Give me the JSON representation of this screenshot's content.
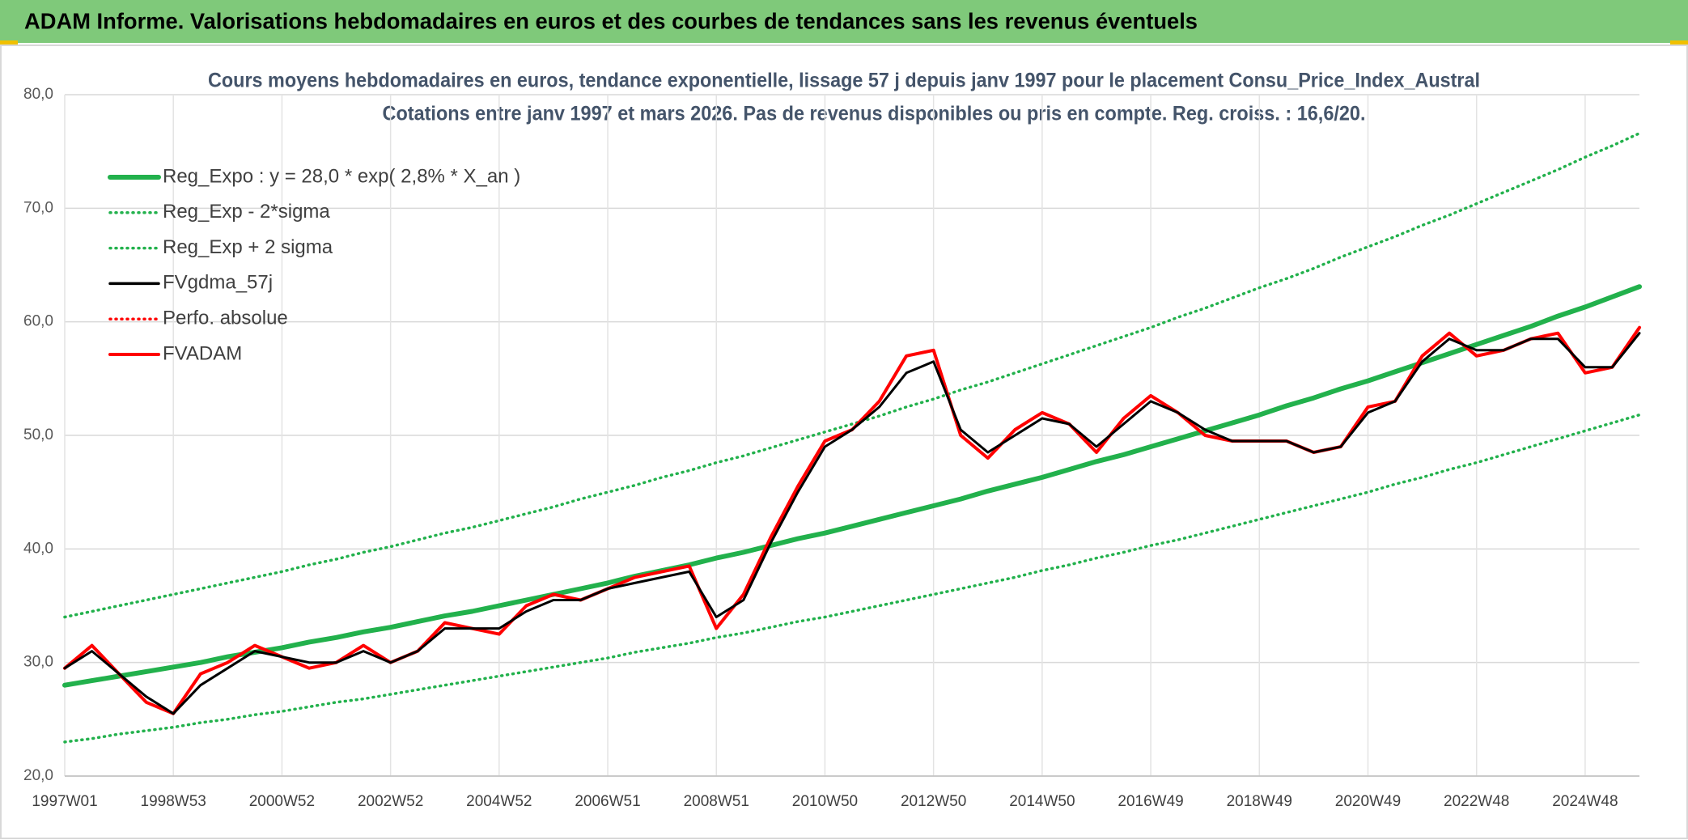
{
  "header": {
    "title": "ADAM Informe. Valorisations hebdomadaires en euros et des courbes de tendances sans les revenus éventuels"
  },
  "chart_data": {
    "type": "line",
    "title": "Cours moyens hebdomadaires en euros, tendance exponentielle, lissage 57 j depuis janv 1997 pour le placement Consu_Price_Index_Austral",
    "subtitle": "Cotations entre janv 1997 et mars 2026. Pas de revenus disponibles ou pris en compte. Reg. croiss. : 16,6/20.",
    "categories": [
      "1997W01",
      null,
      null,
      null,
      "1998W53",
      null,
      null,
      null,
      "2000W52",
      null,
      null,
      null,
      "2002W52",
      null,
      null,
      null,
      "2004W52",
      null,
      null,
      null,
      "2006W51",
      null,
      null,
      null,
      "2008W51",
      null,
      null,
      null,
      "2010W50",
      null,
      null,
      null,
      "2012W50",
      null,
      null,
      null,
      "2014W50",
      null,
      null,
      null,
      "2016W49",
      null,
      null,
      null,
      "2018W49",
      null,
      null,
      null,
      "2020W49",
      null,
      null,
      null,
      "2022W48",
      null,
      null,
      null,
      "2024W48",
      null,
      null
    ],
    "ylim": [
      20,
      80
    ],
    "yticks": [
      {
        "value": 20,
        "label": "20,0"
      },
      {
        "value": 30,
        "label": "30,0"
      },
      {
        "value": 40,
        "label": "40,0"
      },
      {
        "value": 50,
        "label": "50,0"
      },
      {
        "value": 60,
        "label": "60,0"
      },
      {
        "value": 70,
        "label": "70,0"
      },
      {
        "value": 80,
        "label": "80,0"
      }
    ],
    "grid": true,
    "legend": "top-left",
    "series": [
      {
        "name": "Reg_Expo : y = 28,0 * exp( 2,8% *  X_an )",
        "color": "#22b14c",
        "style": "solid",
        "values": [
          28.0,
          28.4,
          28.8,
          29.2,
          29.6,
          30.0,
          30.5,
          30.9,
          31.3,
          31.8,
          32.2,
          32.7,
          33.1,
          33.6,
          34.1,
          34.5,
          35.0,
          35.5,
          36.0,
          36.5,
          37.0,
          37.6,
          38.1,
          38.6,
          39.2,
          39.7,
          40.3,
          40.9,
          41.4,
          42.0,
          42.6,
          43.2,
          43.8,
          44.4,
          45.1,
          45.7,
          46.3,
          47.0,
          47.7,
          48.3,
          49.0,
          49.7,
          50.4,
          51.1,
          51.8,
          52.6,
          53.3,
          54.1,
          54.8,
          55.6,
          56.4,
          57.2,
          58.0,
          58.8,
          59.6,
          60.5,
          61.3,
          62.2,
          63.1
        ]
      },
      {
        "name": "Reg_Exp - 2*sigma",
        "color": "#22b14c",
        "style": "dotted",
        "values": [
          23.0,
          23.3,
          23.7,
          24.0,
          24.3,
          24.7,
          25.0,
          25.4,
          25.7,
          26.1,
          26.5,
          26.8,
          27.2,
          27.6,
          28.0,
          28.4,
          28.8,
          29.2,
          29.6,
          30.0,
          30.4,
          30.9,
          31.3,
          31.7,
          32.2,
          32.6,
          33.1,
          33.6,
          34.0,
          34.5,
          35.0,
          35.5,
          36.0,
          36.5,
          37.0,
          37.5,
          38.1,
          38.6,
          39.2,
          39.7,
          40.3,
          40.8,
          41.4,
          42.0,
          42.6,
          43.2,
          43.8,
          44.4,
          45.0,
          45.7,
          46.3,
          47.0,
          47.6,
          48.3,
          49.0,
          49.7,
          50.4,
          51.1,
          51.8
        ]
      },
      {
        "name": "Reg_Exp + 2 sigma",
        "color": "#22b14c",
        "style": "dotted",
        "values": [
          34.0,
          34.5,
          35.0,
          35.5,
          36.0,
          36.5,
          37.0,
          37.5,
          38.0,
          38.6,
          39.1,
          39.7,
          40.2,
          40.8,
          41.4,
          41.9,
          42.5,
          43.1,
          43.7,
          44.4,
          45.0,
          45.6,
          46.3,
          46.9,
          47.6,
          48.2,
          48.9,
          49.6,
          50.3,
          51.0,
          51.7,
          52.5,
          53.2,
          54.0,
          54.7,
          55.5,
          56.3,
          57.1,
          57.9,
          58.7,
          59.5,
          60.4,
          61.2,
          62.1,
          63.0,
          63.8,
          64.7,
          65.7,
          66.6,
          67.5,
          68.5,
          69.4,
          70.4,
          71.4,
          72.4,
          73.4,
          74.5,
          75.5,
          76.6
        ]
      },
      {
        "name": "FVgdma_57j",
        "color": "#000000",
        "style": "solid",
        "values": [
          29.5,
          31,
          29,
          27,
          25.5,
          28,
          29.5,
          31,
          30.5,
          30,
          30,
          31,
          30,
          31,
          33,
          33,
          33,
          34.5,
          35.5,
          35.5,
          36.5,
          37,
          37.5,
          38,
          34,
          35.5,
          40.5,
          45,
          49,
          50.5,
          52.5,
          55.5,
          56.5,
          50.5,
          48.5,
          50,
          51.5,
          51,
          49,
          51,
          53,
          52,
          50.5,
          49.5,
          49.5,
          49.5,
          48.5,
          49,
          52,
          53,
          56.5,
          58.5,
          57.5,
          57.5,
          58.5,
          58.5,
          56,
          56,
          59
        ]
      },
      {
        "name": "Perfo. absolue",
        "color": "#ff0000",
        "style": "dotted",
        "values": [
          29.5,
          31.5,
          29,
          26.5,
          25.5,
          29,
          30,
          31.5,
          30.5,
          29.5,
          30,
          31.5,
          30,
          31,
          33.5,
          33,
          32.5,
          35,
          36,
          35.5,
          36.5,
          37.5,
          38,
          38.5,
          33,
          36,
          41,
          45.5,
          49.5,
          50.5,
          53,
          57,
          57.5,
          50,
          48,
          50.5,
          52,
          51,
          48.5,
          51.5,
          53.5,
          52,
          50,
          49.5,
          49.5,
          49.5,
          48.5,
          49,
          52.5,
          53,
          57,
          59,
          57,
          57.5,
          58.5,
          59,
          55.5,
          56,
          59.5
        ]
      },
      {
        "name": "FVADAM",
        "color": "#ff0000",
        "style": "solid",
        "values": [
          29.5,
          31.5,
          29,
          26.5,
          25.5,
          29,
          30,
          31.5,
          30.5,
          29.5,
          30,
          31.5,
          30,
          31,
          33.5,
          33,
          32.5,
          35,
          36,
          35.5,
          36.5,
          37.5,
          38,
          38.5,
          33,
          36,
          41,
          45.5,
          49.5,
          50.5,
          53,
          57,
          57.5,
          50,
          48,
          50.5,
          52,
          51,
          48.5,
          51.5,
          53.5,
          52,
          50,
          49.5,
          49.5,
          49.5,
          48.5,
          49,
          52.5,
          53,
          57,
          59,
          57,
          57.5,
          58.5,
          59,
          55.5,
          56,
          59.5
        ]
      }
    ]
  }
}
